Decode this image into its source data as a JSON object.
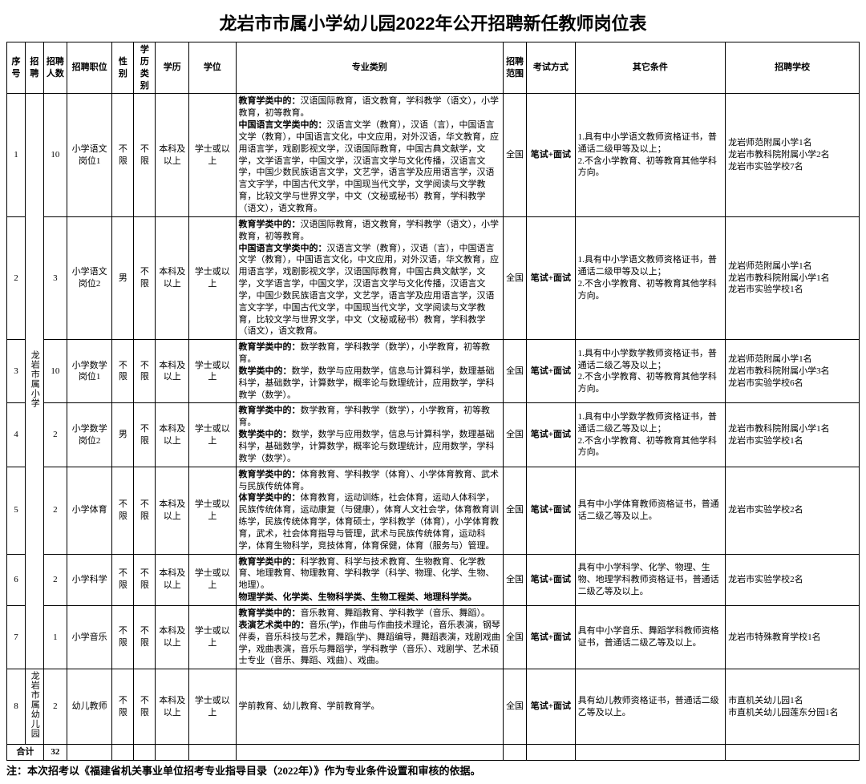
{
  "title": "龙岩市市属小学幼儿园2022年公开招聘新任教师岗位表",
  "columns": {
    "c1": "序号",
    "c2": "招聘",
    "c3": "招聘人数",
    "c4": "招聘职位",
    "c5": "性别",
    "c6": "学历类别",
    "c7": "学历",
    "c8": "学位",
    "c9": "专业类别",
    "c10": "招聘范围",
    "c11": "考试方式",
    "c12": "其它条件",
    "c13": "招聘学校"
  },
  "col_widths": {
    "c1": 22,
    "c2": 22,
    "c3": 28,
    "c4": 54,
    "c5": 26,
    "c6": 26,
    "c7": 40,
    "c8": 56,
    "c9": 320,
    "c10": 28,
    "c11": 58,
    "c12": 180,
    "c13": 160
  },
  "group1_label": "龙岩市属小学",
  "group2_label": "龙岩市属幼儿园",
  "rows": [
    {
      "no": "1",
      "count": "10",
      "pos": "小学语文岗位1",
      "gender": "不限",
      "eduType": "不限",
      "edu": "本科及以上",
      "degree": "学士或以上",
      "major_b1": "教育学类中的：",
      "major_t1": "汉语国际教育，语文教育，学科教学（语文），小学教育，初等教育。",
      "major_b2": "中国语言文学类中的：",
      "major_t2": "汉语言文学（教育），汉语（言），中国语言文学（教育），中国语言文化，中文应用，对外汉语，华文教育，应用语言学，戏剧影视文学，汉语国际教育，中国古典文献学，文学，文学语言学，中国文学，汉语言文学与文化传播，汉语言文学，中国少数民族语言文学，文艺学，语言学及应用语言学，汉语言文字学，中国古代文学，中国现当代文学，文学阅读与文学教育，比较文学与世界文学，中文（文秘或秘书）教育，学科教学（语文），语文教育。",
      "scope": "全国",
      "exam": "笔试+面试",
      "other": "1.具有中小学语文教师资格证书，普通话二级甲等及以上；\n2.不含小学教育、初等教育其他学科方向。",
      "school": "龙岩师范附属小学1名\n龙岩市教科院附属小学2名\n龙岩市实验学校7名"
    },
    {
      "no": "2",
      "count": "3",
      "pos": "小学语文岗位2",
      "gender": "男",
      "eduType": "不限",
      "edu": "本科及以上",
      "degree": "学士或以上",
      "major_b1": "教育学类中的：",
      "major_t1": "汉语国际教育，语文教育，学科教学（语文），小学教育，初等教育。",
      "major_b2": "中国语言文学类中的：",
      "major_t2": "汉语言文学（教育），汉语（言），中国语言文学（教育），中国语言文化，中文应用，对外汉语，华文教育，应用语言学，戏剧影视文学，汉语国际教育，中国古典文献学，文学，文学语言学，中国文学，汉语言文学与文化传播，汉语言文学，中国少数民族语言文学，文艺学，语言学及应用语言学，汉语言文字学，中国古代文学，中国现当代文学，文学阅读与文学教育，比较文学与世界文学，中文（文秘或秘书）教育，学科教学（语文），语文教育。",
      "scope": "全国",
      "exam": "笔试+面试",
      "other": "1.具有中小学语文教师资格证书，普通话二级甲等及以上；\n2.不含小学教育、初等教育其他学科方向。",
      "school": "龙岩师范附属小学1名\n龙岩市教科院附属小学1名\n龙岩市实验学校1名"
    },
    {
      "no": "3",
      "count": "10",
      "pos": "小学数学岗位1",
      "gender": "不限",
      "eduType": "不限",
      "edu": "本科及以上",
      "degree": "学士或以上",
      "major_b1": "教育学类中的：",
      "major_t1": "数学教育，学科教学（数学），小学教育，初等教育。",
      "major_b2": "数学类中的：",
      "major_t2": "数学，数学与应用数学，信息与计算科学，数理基础科学，基础数学，计算数学，概率论与数理统计，应用数学，学科教学（数学）。",
      "scope": "全国",
      "exam": "笔试+面试",
      "other": "1.具有中小学数学教师资格证书，普通话二级乙等及以上；\n2.不含小学教育、初等教育其他学科方向。",
      "school": "龙岩师范附属小学1名\n龙岩市教科院附属小学3名\n龙岩市实验学校6名"
    },
    {
      "no": "4",
      "count": "2",
      "pos": "小学数学岗位2",
      "gender": "男",
      "eduType": "不限",
      "edu": "本科及以上",
      "degree": "学士或以上",
      "major_b1": "教育学类中的：",
      "major_t1": "数学教育，学科教学（数学），小学教育，初等教育。",
      "major_b2": "数学类中的：",
      "major_t2": "数学，数学与应用数学，信息与计算科学，数理基础科学，基础数学，计算数学，概率论与数理统计，应用数学，学科教学（数学）。",
      "scope": "全国",
      "exam": "笔试+面试",
      "other": "1.具有中小学数学教师资格证书，普通话二级乙等及以上；\n2.不含小学教育、初等教育其他学科方向。",
      "school": "龙岩市教科院附属小学1名\n龙岩市实验学校1名"
    },
    {
      "no": "5",
      "count": "2",
      "pos": "小学体育",
      "gender": "不限",
      "eduType": "不限",
      "edu": "本科及以上",
      "degree": "学士或以上",
      "major_b1": "教育学类中的：",
      "major_t1": "体育教育、学科教学（体育）、小学体育教育、武术与民族传统体育。",
      "major_b2": "体育学类中的：",
      "major_t2": "体育教育，运动训练，社会体育，运动人体科学，民族传统体育，运动康复（与健康），体育人文社会学，体育教育训练学，民族传统体育学，体育硕士，学科教学（体育），小学体育教育，武术，社会体育指导与管理，武术与民族传统体育，运动科学，体育生物科学，竞技体育，体育保健，体育（服务与）管理。",
      "scope": "全国",
      "exam": "笔试+面试",
      "other": "具有中小学体育教师资格证书，普通话二级乙等及以上。",
      "school": "龙岩市实验学校2名"
    },
    {
      "no": "6",
      "count": "2",
      "pos": "小学科学",
      "gender": "不限",
      "eduType": "不限",
      "edu": "本科及以上",
      "degree": "学士或以上",
      "major_b1": "教育学类中的：",
      "major_t1": "科学教育、科学与技术教育、生物教育、化学教育、地理教育、物理教育、学科教学（科学、物理、化学、生物、地理）。",
      "major_b2": "物理学类、化学类、生物科学类、生物工程类、地理科学类。",
      "major_t2": "",
      "scope": "全国",
      "exam": "笔试+面试",
      "other": "具有中小学科学、化学、物理、生物、地理学科教师资格证书，普通话二级乙等及以上。",
      "school": "龙岩市实验学校2名"
    },
    {
      "no": "7",
      "count": "1",
      "pos": "小学音乐",
      "gender": "不限",
      "eduType": "不限",
      "edu": "本科及以上",
      "degree": "学士或以上",
      "major_b1": "教育学类中的：",
      "major_t1": "音乐教育、舞蹈教育、学科教学（音乐、舞蹈）。",
      "major_b2": "表演艺术类中的：",
      "major_t2": "音乐(学)，作曲与作曲技术理论，音乐表演，钢琴伴奏，音乐科技与艺术，舞蹈(学)、舞蹈编导，舞蹈表演，戏剧戏曲学，戏曲表演，音乐与舞蹈学，学科教学（音乐）、戏剧学、艺术硕士专业（音乐、舞蹈、戏曲）、戏曲。",
      "scope": "全国",
      "exam": "笔试+面试",
      "other": "具有中小学音乐、舞蹈学科教师资格证书，普通话二级乙等及以上。",
      "school": "龙岩市特殊教育学校1名"
    },
    {
      "no": "8",
      "count": "2",
      "pos": "幼儿教师",
      "gender": "不限",
      "eduType": "不限",
      "edu": "本科及以上",
      "degree": "学士或以上",
      "major_plain": "学前教育、幼儿教育、学前教育学。",
      "scope": "全国",
      "exam": "笔试+面试",
      "other": "具有幼儿教师资格证书，普通话二级乙等及以上。",
      "school": "市直机关幼儿园1名\n市直机关幼儿园莲东分园1名"
    }
  ],
  "total_label": "合计",
  "total_count": "32",
  "footnote": "注：本次招考以《福建省机关事业单位招考专业指导目录（2022年）》作为专业条件设置和审核的依据。"
}
